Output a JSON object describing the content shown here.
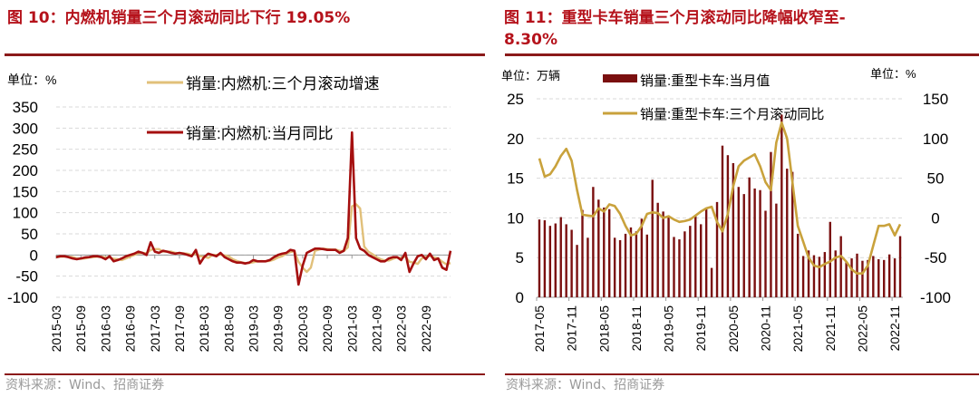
{
  "left": {
    "title": "图 10：内燃机销量三个月滚动同比下行 19.05%",
    "source": "资料来源：Wind、招商证券"
  },
  "right": {
    "title_line1": "图 11：重型卡车销量三个月滚动同比降幅收窄至-",
    "title_line2": "8.30%",
    "source": "资料来源：Wind、招商证券"
  },
  "colors": {
    "title": "#b5121b",
    "rule": "#8b1a1a",
    "red_line": "#a50f0f",
    "gold_line": "#e1c07a",
    "bar": "#7a0f0f",
    "gold_line2": "#c9a23c"
  },
  "chart_data": [
    {
      "type": "line",
      "unit_label": "单位：%",
      "ylim": [
        -100,
        350
      ],
      "yticks": [
        "350",
        "300",
        "250",
        "200",
        "150",
        "100",
        "50",
        "0",
        "-50",
        "-100"
      ],
      "xtick_labels": [
        "2015-03",
        "2015-09",
        "2016-03",
        "2016-09",
        "2017-03",
        "2017-09",
        "2018-03",
        "2018-09",
        "2019-03",
        "2019-09",
        "2020-03",
        "2020-09",
        "2021-03",
        "2021-09",
        "2022-03",
        "2022-09"
      ],
      "x_start": "2015-03",
      "grid": true,
      "legend": "top",
      "series": [
        {
          "name": "销量:内燃机:三个月滚动增速",
          "color": "#e1c07a",
          "values": [
            -5,
            -4,
            -4,
            -4,
            -5,
            -8,
            -9,
            -8,
            -6,
            -5,
            -4,
            -4,
            -6,
            -6,
            -9,
            -10,
            -12,
            -8,
            -4,
            0,
            4,
            5,
            4,
            12,
            14,
            14,
            8,
            8,
            8,
            5,
            4,
            4,
            3,
            0,
            3,
            -3,
            -4,
            -7,
            0,
            0,
            1,
            -1,
            -3,
            -10,
            -14,
            -17,
            -19,
            -19,
            -17,
            -15,
            -14,
            -15,
            -14,
            -11,
            -6,
            -3,
            3,
            7,
            9,
            -16,
            -30,
            -40,
            -30,
            10,
            13,
            15,
            14,
            13,
            13,
            10,
            9,
            18,
            115,
            120,
            110,
            20,
            8,
            2,
            -5,
            -10,
            -13,
            -13,
            -9,
            -6,
            -7,
            -4,
            -16,
            -18,
            -21,
            -8,
            -4,
            -2,
            -6,
            -8,
            -16,
            -22,
            -19
          ]
        },
        {
          "name": "销量:内燃机:当月同比",
          "color": "#a50f0f",
          "values": [
            -5,
            -3,
            -3,
            -5,
            -8,
            -10,
            -8,
            -6,
            -5,
            -3,
            -3,
            -5,
            -10,
            -3,
            -15,
            -12,
            -8,
            -3,
            0,
            3,
            8,
            5,
            0,
            30,
            8,
            5,
            10,
            8,
            5,
            3,
            5,
            3,
            0,
            -3,
            12,
            -20,
            -5,
            3,
            0,
            -3,
            5,
            -5,
            -10,
            -15,
            -18,
            -18,
            -20,
            -18,
            -12,
            -15,
            -15,
            -15,
            -12,
            -5,
            0,
            3,
            5,
            12,
            10,
            -70,
            -25,
            5,
            10,
            15,
            15,
            14,
            12,
            12,
            12,
            5,
            10,
            40,
            290,
            40,
            15,
            10,
            0,
            -5,
            -10,
            -15,
            -15,
            -8,
            -5,
            -5,
            -12,
            5,
            -40,
            -20,
            -3,
            0,
            -10,
            3,
            -12,
            -8,
            -30,
            -35,
            10
          ]
        }
      ]
    },
    {
      "type": "bar+line",
      "left_unit_label": "单位：万辆",
      "right_unit_label": "单位：%",
      "ylim_left": [
        0,
        25
      ],
      "ylim_right": [
        -100,
        150
      ],
      "yticks_left": [
        "25",
        "20",
        "15",
        "10",
        "5",
        "0"
      ],
      "yticks_right": [
        "150",
        "100",
        "50",
        "0",
        "-50",
        "-100"
      ],
      "xtick_labels": [
        "2017-05",
        "2017-11",
        "2018-05",
        "2018-11",
        "2019-05",
        "2019-11",
        "2020-05",
        "2020-11",
        "2021-05",
        "2021-11",
        "2022-05",
        "2022-11"
      ],
      "x_start": "2017-05",
      "grid": true,
      "legend": "top",
      "series": [
        {
          "name": "销量:重型卡车:当月值",
          "type": "bar",
          "axis": "left",
          "color": "#7a0f0f",
          "values": [
            9.8,
            9.7,
            9.0,
            9.3,
            10.1,
            9.2,
            8.5,
            6.6,
            11.0,
            7.5,
            13.9,
            12.3,
            11.3,
            11.1,
            7.5,
            7.2,
            8.0,
            8.8,
            8.3,
            9.9,
            7.9,
            14.8,
            11.9,
            10.8,
            10.3,
            7.6,
            7.3,
            8.3,
            9.0,
            10.2,
            9.2,
            11.3,
            3.7,
            12.0,
            19.1,
            17.9,
            16.9,
            13.9,
            13.0,
            15.1,
            13.7,
            13.5,
            10.9,
            18.3,
            11.8,
            23.0,
            16.2,
            15.8,
            8.0,
            5.2,
            5.9,
            5.3,
            5.1,
            5.7,
            9.5,
            5.9,
            7.7,
            4.4,
            4.9,
            5.5,
            4.6,
            4.7,
            5.2,
            4.8,
            4.7,
            5.4,
            4.9,
            7.7
          ]
        },
        {
          "name": "销量:重型卡车:三个月滚动同比",
          "type": "line",
          "axis": "right",
          "color": "#c9a23c",
          "values": [
            75,
            52,
            55,
            65,
            78,
            87,
            72,
            35,
            4,
            3,
            2,
            12,
            8,
            17,
            15,
            5,
            -10,
            -22,
            -20,
            -10,
            5,
            7,
            6,
            0,
            2,
            -2,
            -5,
            -4,
            -2,
            3,
            8,
            12,
            14,
            -5,
            -17,
            5,
            40,
            65,
            72,
            76,
            80,
            65,
            45,
            35,
            95,
            120,
            100,
            45,
            -10,
            -30,
            -50,
            -60,
            -62,
            -58,
            -55,
            -50,
            -48,
            -55,
            -65,
            -70,
            -70,
            -60,
            -35,
            -10,
            -10,
            -8,
            -22,
            -8
          ]
        }
      ]
    }
  ]
}
